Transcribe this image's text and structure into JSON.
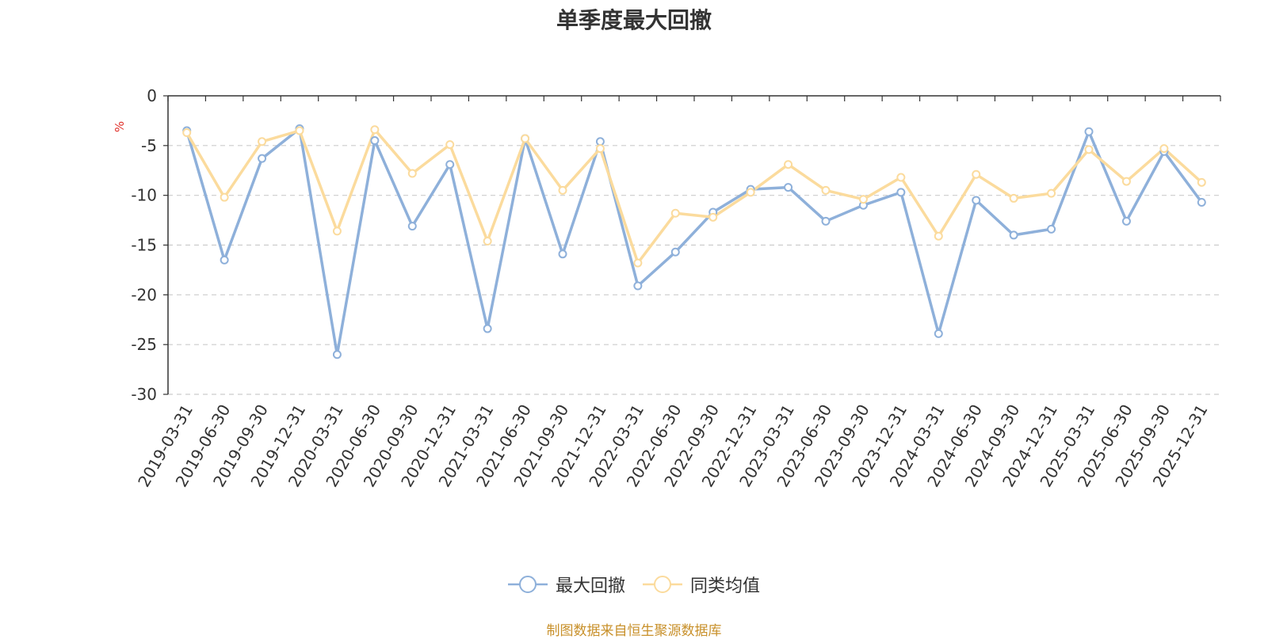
{
  "chart_data": {
    "type": "line",
    "title": "单季度最大回撤",
    "ylabel": "%",
    "ylim": [
      -30,
      0
    ],
    "yticks": [
      0,
      -5,
      -10,
      -15,
      -20,
      -25,
      -30
    ],
    "grid": true,
    "legend_position": "bottom-center",
    "categories": [
      "2019-03-31",
      "2019-06-30",
      "2019-09-30",
      "2019-12-31",
      "2020-03-31",
      "2020-06-30",
      "2020-09-30",
      "2020-12-31",
      "2021-03-31",
      "2021-06-30",
      "2021-09-30",
      "2021-12-31",
      "2022-03-31",
      "2022-06-30",
      "2022-09-30",
      "2022-12-31",
      "2023-03-31",
      "2023-06-30",
      "2023-09-30",
      "2023-12-31",
      "2024-03-31",
      "2024-06-30",
      "2024-09-30",
      "2024-12-31",
      "2025-03-31",
      "2025-06-30",
      "2025-09-30",
      "2025-12-31"
    ],
    "series": [
      {
        "name": "最大回撤",
        "color": "#8eb0da",
        "values": [
          -3.5,
          -16.5,
          -6.3,
          -3.3,
          -26.0,
          -4.5,
          -13.1,
          -6.9,
          -23.4,
          -4.3,
          -15.9,
          -4.6,
          -19.1,
          -15.7,
          -11.7,
          -9.4,
          -9.2,
          -12.6,
          -11.0,
          -9.7,
          -23.9,
          -10.5,
          -14.0,
          -13.4,
          -3.6,
          -12.6,
          -5.6,
          -10.7
        ]
      },
      {
        "name": "同类均值",
        "color": "#fbdb9d",
        "values": [
          -3.7,
          -10.2,
          -4.6,
          -3.5,
          -13.6,
          -3.4,
          -7.8,
          -4.9,
          -14.6,
          -4.3,
          -9.5,
          -5.3,
          -16.8,
          -11.8,
          -12.2,
          -9.7,
          -6.9,
          -9.5,
          -10.4,
          -8.2,
          -14.1,
          -7.9,
          -10.3,
          -9.8,
          -5.4,
          -8.6,
          -5.3,
          -8.7
        ]
      }
    ]
  },
  "source_note": "制图数据来自恒生聚源数据库"
}
